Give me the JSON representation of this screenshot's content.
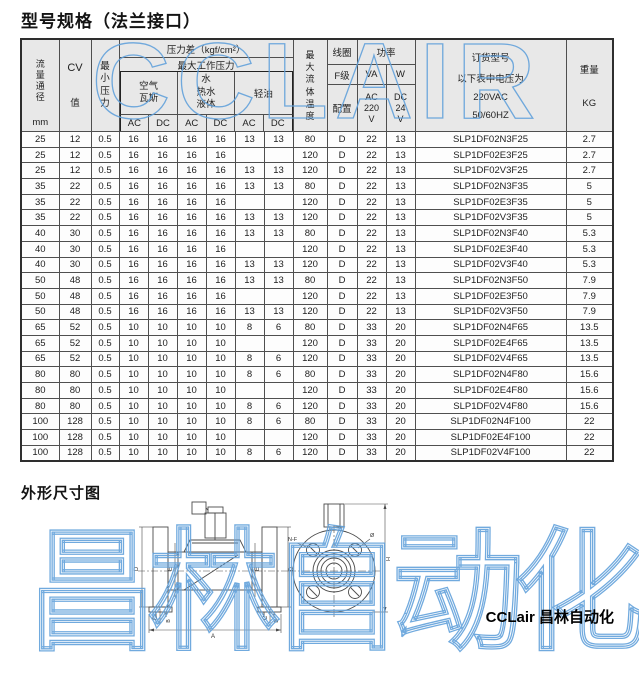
{
  "page": {
    "title": "型号规格（法兰接口）",
    "dimension_section_title": "外形尺寸图",
    "footer_brand": "CCLair 昌林自动化",
    "watermark_top": "CCLAIR",
    "watermark_bottom": "昌林自动化",
    "watermark_color": "#5b9bd5",
    "header_bg": "#e8e8e8"
  },
  "table": {
    "header": {
      "flow_diameter": "流\n量\n通\n径",
      "flow_unit": "mm",
      "cv": "CV",
      "cv_value": "值",
      "min_pressure": "最\n小\n压\n力",
      "pressure_diff": "压力差（kgf/cm²）",
      "max_working_pressure": "最大工作压力",
      "media_air": "空气\n瓦斯",
      "media_water": "水\n热水\n液体",
      "media_oil": "轻油",
      "ac": "AC",
      "dc": "DC",
      "max_fluid_temp": "最\n大\n流\n体\n温\n度",
      "coil": "线圈",
      "coil_class": "F级",
      "coil_config": "配置",
      "power": "功率",
      "power_va": "VA",
      "power_w": "W",
      "power_ac": "AC\n220\nV",
      "power_dc": "DC\n24\nV",
      "order_model": "订货型号",
      "order_note": "以下表中电压为",
      "order_voltage": "220VAC",
      "order_freq": "50/60HZ",
      "weight": "重量",
      "weight_unit": "KG"
    },
    "rows": [
      [
        "25",
        "12",
        "0.5",
        "16",
        "16",
        "16",
        "16",
        "13",
        "13",
        "80",
        "D",
        "22",
        "13",
        "SLP1DF02N3F25",
        "2.7"
      ],
      [
        "25",
        "12",
        "0.5",
        "16",
        "16",
        "16",
        "16",
        "",
        "",
        "120",
        "D",
        "22",
        "13",
        "SLP1DF02E3F25",
        "2.7"
      ],
      [
        "25",
        "12",
        "0.5",
        "16",
        "16",
        "16",
        "16",
        "13",
        "13",
        "120",
        "D",
        "22",
        "13",
        "SLP1DF02V3F25",
        "2.7"
      ],
      [
        "35",
        "22",
        "0.5",
        "16",
        "16",
        "16",
        "16",
        "13",
        "13",
        "80",
        "D",
        "22",
        "13",
        "SLP1DF02N3F35",
        "5"
      ],
      [
        "35",
        "22",
        "0.5",
        "16",
        "16",
        "16",
        "16",
        "",
        "",
        "120",
        "D",
        "22",
        "13",
        "SLP1DF02E3F35",
        "5"
      ],
      [
        "35",
        "22",
        "0.5",
        "16",
        "16",
        "16",
        "16",
        "13",
        "13",
        "120",
        "D",
        "22",
        "13",
        "SLP1DF02V3F35",
        "5"
      ],
      [
        "40",
        "30",
        "0.5",
        "16",
        "16",
        "16",
        "16",
        "13",
        "13",
        "80",
        "D",
        "22",
        "13",
        "SLP1DF02N3F40",
        "5.3"
      ],
      [
        "40",
        "30",
        "0.5",
        "16",
        "16",
        "16",
        "16",
        "",
        "",
        "120",
        "D",
        "22",
        "13",
        "SLP1DF02E3F40",
        "5.3"
      ],
      [
        "40",
        "30",
        "0.5",
        "16",
        "16",
        "16",
        "16",
        "13",
        "13",
        "120",
        "D",
        "22",
        "13",
        "SLP1DF02V3F40",
        "5.3"
      ],
      [
        "50",
        "48",
        "0.5",
        "16",
        "16",
        "16",
        "16",
        "13",
        "13",
        "80",
        "D",
        "22",
        "13",
        "SLP1DF02N3F50",
        "7.9"
      ],
      [
        "50",
        "48",
        "0.5",
        "16",
        "16",
        "16",
        "16",
        "",
        "",
        "120",
        "D",
        "22",
        "13",
        "SLP1DF02E3F50",
        "7.9"
      ],
      [
        "50",
        "48",
        "0.5",
        "16",
        "16",
        "16",
        "16",
        "13",
        "13",
        "120",
        "D",
        "22",
        "13",
        "SLP1DF02V3F50",
        "7.9"
      ],
      [
        "65",
        "52",
        "0.5",
        "10",
        "10",
        "10",
        "10",
        "8",
        "6",
        "80",
        "D",
        "33",
        "20",
        "SLP1DF02N4F65",
        "13.5"
      ],
      [
        "65",
        "52",
        "0.5",
        "10",
        "10",
        "10",
        "10",
        "",
        "",
        "120",
        "D",
        "33",
        "20",
        "SLP1DF02E4F65",
        "13.5"
      ],
      [
        "65",
        "52",
        "0.5",
        "10",
        "10",
        "10",
        "10",
        "8",
        "6",
        "120",
        "D",
        "33",
        "20",
        "SLP1DF02V4F65",
        "13.5"
      ],
      [
        "80",
        "80",
        "0.5",
        "10",
        "10",
        "10",
        "10",
        "8",
        "6",
        "80",
        "D",
        "33",
        "20",
        "SLP1DF02N4F80",
        "15.6"
      ],
      [
        "80",
        "80",
        "0.5",
        "10",
        "10",
        "10",
        "10",
        "",
        "",
        "120",
        "D",
        "33",
        "20",
        "SLP1DF02E4F80",
        "15.6"
      ],
      [
        "80",
        "80",
        "0.5",
        "10",
        "10",
        "10",
        "10",
        "8",
        "6",
        "120",
        "D",
        "33",
        "20",
        "SLP1DF02V4F80",
        "15.6"
      ],
      [
        "100",
        "128",
        "0.5",
        "10",
        "10",
        "10",
        "10",
        "8",
        "6",
        "80",
        "D",
        "33",
        "20",
        "SLP1DF02N4F100",
        "22"
      ],
      [
        "100",
        "128",
        "0.5",
        "10",
        "10",
        "10",
        "10",
        "",
        "",
        "120",
        "D",
        "33",
        "20",
        "SLP1DF02E4F100",
        "22"
      ],
      [
        "100",
        "128",
        "0.5",
        "10",
        "10",
        "10",
        "10",
        "8",
        "6",
        "120",
        "D",
        "33",
        "20",
        "SLP1DF02V4F100",
        "22"
      ]
    ]
  },
  "drawing": {
    "side_labels": {
      "a": "A",
      "b": "B",
      "c": "C",
      "d": "D",
      "e": "E"
    },
    "front_labels": {
      "holes": "N-F",
      "hole_dia": "Ø",
      "height": "H"
    }
  }
}
